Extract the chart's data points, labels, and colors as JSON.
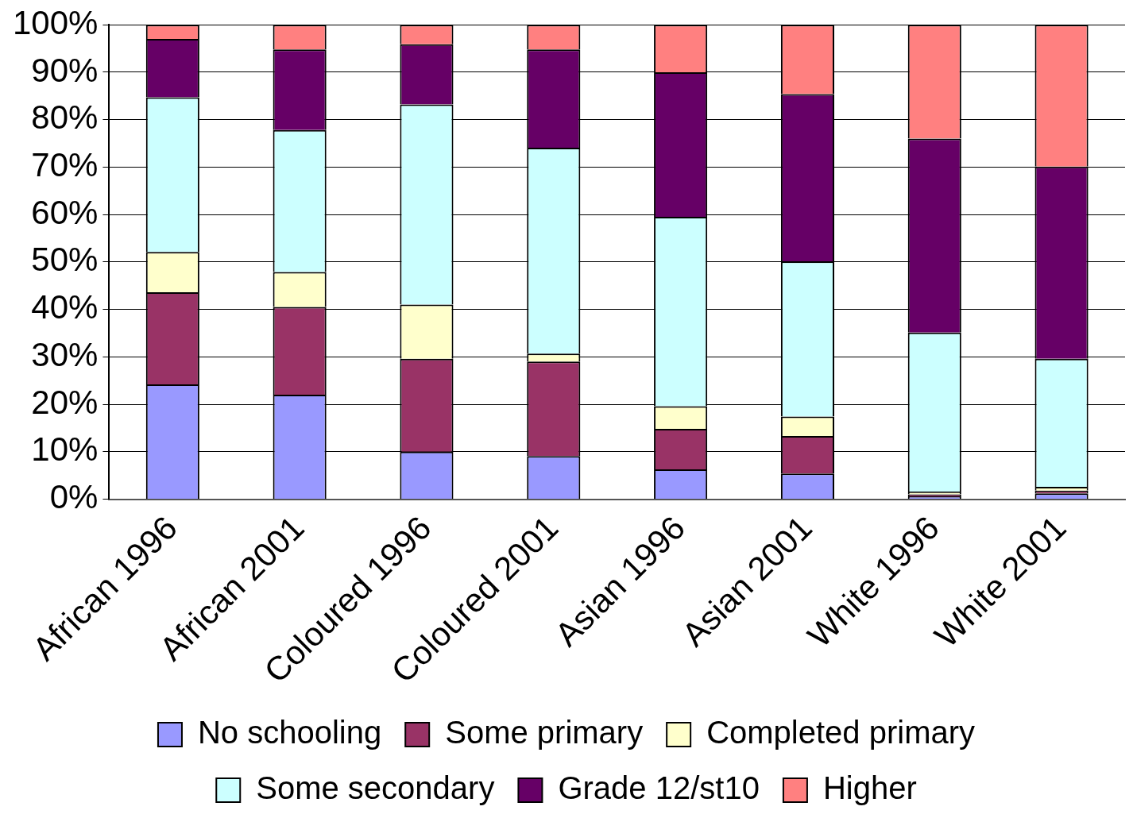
{
  "chart_data": {
    "type": "bar",
    "stacked": true,
    "categories": [
      "African 1996",
      "African 2001",
      "Coloured 1996",
      "Coloured 2001",
      "Asian 1996",
      "Asian 2001",
      "White 1996",
      "White 2001"
    ],
    "series": [
      {
        "name": "No schooling",
        "color": "#9999ff",
        "values": [
          24.2,
          22.0,
          10.0,
          9.1,
          6.3,
          5.4,
          0.6,
          1.2
        ]
      },
      {
        "name": "Some primary",
        "color": "#993366",
        "values": [
          19.4,
          18.5,
          19.6,
          19.9,
          8.5,
          7.9,
          0.4,
          0.6
        ]
      },
      {
        "name": "Completed primary",
        "color": "#ffffcc",
        "values": [
          8.5,
          7.4,
          11.4,
          1.7,
          4.8,
          4.1,
          0.6,
          0.8
        ]
      },
      {
        "name": "Some secondary",
        "color": "#ccffff",
        "values": [
          32.6,
          29.9,
          42.2,
          43.4,
          39.9,
          32.7,
          33.5,
          27.0
        ]
      },
      {
        "name": "Grade 12/st10",
        "color": "#660066",
        "values": [
          12.3,
          17.0,
          12.7,
          20.7,
          30.5,
          35.3,
          40.9,
          40.5
        ]
      },
      {
        "name": "Higher",
        "color": "#ff8080",
        "values": [
          3.0,
          5.2,
          4.1,
          5.2,
          10.0,
          14.6,
          24.0,
          29.9
        ]
      }
    ],
    "ylim": [
      0,
      100
    ],
    "yticks": [
      {
        "value": 0,
        "label": "0%"
      },
      {
        "value": 10,
        "label": "10%"
      },
      {
        "value": 20,
        "label": "20%"
      },
      {
        "value": 30,
        "label": "30%"
      },
      {
        "value": 40,
        "label": "40%"
      },
      {
        "value": 50,
        "label": "50%"
      },
      {
        "value": 60,
        "label": "60%"
      },
      {
        "value": 70,
        "label": "70%"
      },
      {
        "value": 80,
        "label": "80%"
      },
      {
        "value": 90,
        "label": "90%"
      },
      {
        "value": 100,
        "label": "100%"
      }
    ],
    "grid": "y",
    "legend": "bottom"
  }
}
